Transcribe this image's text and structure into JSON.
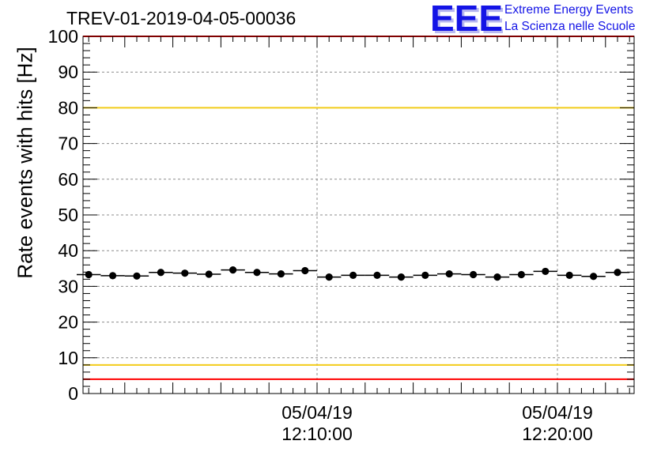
{
  "header": {
    "title": "TREV-01-2019-04-05-00036"
  },
  "logo": {
    "mark": "EEE",
    "line1": "Extreme Energy Events",
    "line2": "La Scienza nelle Scuole",
    "color": "#1414e6"
  },
  "chart_data": {
    "type": "scatter",
    "title": "TREV-01-2019-04-05-00036",
    "xlabel": "",
    "ylabel": "Rate events with hits [Hz]",
    "ylim": [
      0,
      100
    ],
    "yticks": [
      0,
      10,
      20,
      30,
      40,
      50,
      60,
      70,
      80,
      90,
      100
    ],
    "x_ticks": [
      {
        "date": "05/04/19",
        "time": "12:10:00"
      },
      {
        "date": "05/04/19",
        "time": "12:20:00"
      }
    ],
    "grid": true,
    "thresholds": [
      {
        "value": 100,
        "color": "#ff0000"
      },
      {
        "value": 80,
        "color": "#f2cc1a"
      },
      {
        "value": 8,
        "color": "#f2cc1a"
      },
      {
        "value": 4,
        "color": "#ff0000"
      }
    ],
    "series": [
      {
        "x": [
          "12:00:30",
          "12:01:30",
          "12:02:30",
          "12:03:30",
          "12:04:30",
          "12:05:30",
          "12:06:30",
          "12:07:30",
          "12:08:30",
          "12:09:30",
          "12:10:30",
          "12:11:30",
          "12:12:30",
          "12:13:30",
          "12:14:30",
          "12:15:30",
          "12:16:30",
          "12:17:30",
          "12:18:30",
          "12:19:30",
          "12:20:30",
          "12:21:30",
          "12:22:30"
        ],
        "values": [
          33.3,
          33.0,
          32.9,
          33.9,
          33.7,
          33.4,
          34.6,
          33.9,
          33.5,
          34.4,
          32.6,
          33.1,
          33.1,
          32.6,
          33.1,
          33.5,
          33.3,
          32.6,
          33.3,
          34.2,
          33.1,
          32.8,
          33.9
        ],
        "color": "#000000"
      }
    ]
  }
}
